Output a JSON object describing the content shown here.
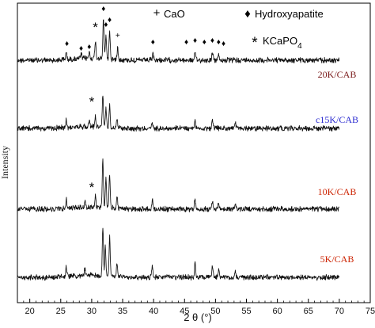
{
  "chart_data": {
    "type": "line",
    "xlabel": "2 θ (°)",
    "ylabel": "Intensity",
    "xlim": [
      18,
      75
    ],
    "x_ticks": [
      20,
      25,
      30,
      35,
      40,
      45,
      50,
      55,
      60,
      65,
      70,
      75
    ],
    "y_ticks_shown": false,
    "grid": false,
    "x_range_of_patterns": [
      18,
      70
    ],
    "series": [
      {
        "name": "20K/CAB",
        "label_color": "#7a1a1a",
        "peaks": [
          {
            "x": 25.9,
            "h": 10
          },
          {
            "x": 28.3,
            "h": 6
          },
          {
            "x": 29.6,
            "h": 8
          },
          {
            "x": 30.6,
            "h": 22
          },
          {
            "x": 31.9,
            "h": 50
          },
          {
            "x": 32.3,
            "h": 30
          },
          {
            "x": 32.9,
            "h": 36
          },
          {
            "x": 34.2,
            "h": 16
          },
          {
            "x": 39.9,
            "h": 8
          },
          {
            "x": 46.7,
            "h": 10
          },
          {
            "x": 49.5,
            "h": 10
          },
          {
            "x": 50.5,
            "h": 7
          }
        ]
      },
      {
        "name": "c15K/CAB",
        "label_color": "#2a2ad0",
        "peaks": [
          {
            "x": 25.9,
            "h": 10
          },
          {
            "x": 29.6,
            "h": 8
          },
          {
            "x": 30.6,
            "h": 12
          },
          {
            "x": 31.8,
            "h": 40
          },
          {
            "x": 32.3,
            "h": 24
          },
          {
            "x": 32.9,
            "h": 28
          },
          {
            "x": 34.1,
            "h": 12
          },
          {
            "x": 39.8,
            "h": 7
          },
          {
            "x": 46.7,
            "h": 9
          },
          {
            "x": 49.5,
            "h": 10
          },
          {
            "x": 53.2,
            "h": 7
          }
        ]
      },
      {
        "name": "10K/CAB",
        "label_color": "#cc2200",
        "peaks": [
          {
            "x": 25.9,
            "h": 11
          },
          {
            "x": 28.9,
            "h": 8
          },
          {
            "x": 30.6,
            "h": 14
          },
          {
            "x": 31.8,
            "h": 62
          },
          {
            "x": 32.3,
            "h": 36
          },
          {
            "x": 32.9,
            "h": 42
          },
          {
            "x": 34.1,
            "h": 14
          },
          {
            "x": 39.8,
            "h": 12
          },
          {
            "x": 46.7,
            "h": 13
          },
          {
            "x": 49.5,
            "h": 11
          },
          {
            "x": 50.5,
            "h": 8
          },
          {
            "x": 53.2,
            "h": 7
          }
        ]
      },
      {
        "name": "5K/CAB",
        "label_color": "#cc2200",
        "peaks": [
          {
            "x": 25.9,
            "h": 12
          },
          {
            "x": 28.9,
            "h": 8
          },
          {
            "x": 31.8,
            "h": 62
          },
          {
            "x": 32.2,
            "h": 38
          },
          {
            "x": 32.9,
            "h": 50
          },
          {
            "x": 34.1,
            "h": 16
          },
          {
            "x": 39.8,
            "h": 15
          },
          {
            "x": 46.7,
            "h": 18
          },
          {
            "x": 49.5,
            "h": 14
          },
          {
            "x": 50.5,
            "h": 10
          },
          {
            "x": 53.2,
            "h": 8
          }
        ]
      }
    ],
    "legend": {
      "placement": "top-right",
      "items": [
        {
          "symbol": "+",
          "label": "CaO"
        },
        {
          "symbol": "♦",
          "label": "Hydroxyapatite"
        },
        {
          "symbol": "*",
          "label": "KCaPO",
          "subscript": "4"
        }
      ]
    },
    "annotations": [
      {
        "symbol": "♦",
        "series": "20K/CAB",
        "x": 26.0
      },
      {
        "symbol": "♦",
        "series": "20K/CAB",
        "x": 28.3
      },
      {
        "symbol": "♦",
        "series": "20K/CAB",
        "x": 29.6
      },
      {
        "symbol": "*",
        "series": "20K/CAB",
        "x": 30.6
      },
      {
        "symbol": "♦",
        "series": "20K/CAB",
        "x": 31.9
      },
      {
        "symbol": "♦",
        "series": "20K/CAB",
        "x": 32.3
      },
      {
        "symbol": "♦",
        "series": "20K/CAB",
        "x": 32.9
      },
      {
        "symbol": "+",
        "series": "20K/CAB",
        "x": 34.2
      },
      {
        "symbol": "♦",
        "series": "20K/CAB",
        "x": 39.9
      },
      {
        "symbol": "♦",
        "series": "20K/CAB",
        "x": 45.3
      },
      {
        "symbol": "♦",
        "series": "20K/CAB",
        "x": 46.7
      },
      {
        "symbol": "♦",
        "series": "20K/CAB",
        "x": 48.2
      },
      {
        "symbol": "♦",
        "series": "20K/CAB",
        "x": 49.5
      },
      {
        "symbol": "♦",
        "series": "20K/CAB",
        "x": 50.5
      },
      {
        "symbol": "♦",
        "series": "20K/CAB",
        "x": 51.3
      },
      {
        "symbol": "*",
        "series": "c15K/CAB",
        "x": 30.0
      },
      {
        "symbol": "*",
        "series": "10K/CAB",
        "x": 30.0
      }
    ]
  }
}
